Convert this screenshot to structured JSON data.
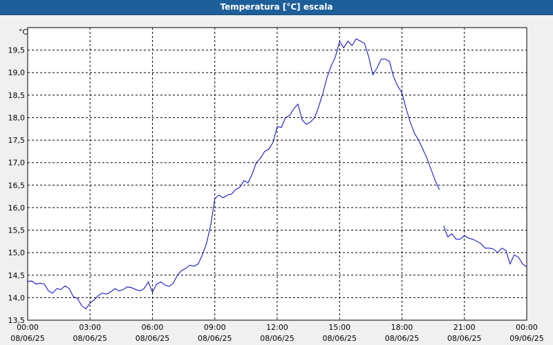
{
  "window": {
    "title": "Temperatura [°C] escala"
  },
  "chart_data": {
    "type": "line",
    "title": "Temperatura [°C] escala",
    "ylabel": "°C",
    "xlabel": "",
    "ylim": [
      13.5,
      20.0
    ],
    "xlim_hours": [
      0,
      24
    ],
    "grid": true,
    "y_ticks": [
      {
        "value": 13.5,
        "label": "13,5"
      },
      {
        "value": 14.0,
        "label": "14,0"
      },
      {
        "value": 14.5,
        "label": "14,5"
      },
      {
        "value": 15.0,
        "label": "15,0"
      },
      {
        "value": 15.5,
        "label": "15,5"
      },
      {
        "value": 16.0,
        "label": "16,0"
      },
      {
        "value": 16.5,
        "label": "16,5"
      },
      {
        "value": 17.0,
        "label": "17,0"
      },
      {
        "value": 17.5,
        "label": "17,5"
      },
      {
        "value": 18.0,
        "label": "18,0"
      },
      {
        "value": 18.5,
        "label": "18,5"
      },
      {
        "value": 19.0,
        "label": "19,0"
      },
      {
        "value": 19.5,
        "label": "19,5"
      }
    ],
    "x_ticks": [
      {
        "hour": 0,
        "time": "00:00",
        "date": "08/06/25"
      },
      {
        "hour": 3,
        "time": "03:00",
        "date": "08/06/25"
      },
      {
        "hour": 6,
        "time": "06:00",
        "date": "08/06/25"
      },
      {
        "hour": 9,
        "time": "09:00",
        "date": "08/06/25"
      },
      {
        "hour": 12,
        "time": "12:00",
        "date": "08/06/25"
      },
      {
        "hour": 15,
        "time": "15:00",
        "date": "08/06/25"
      },
      {
        "hour": 18,
        "time": "18:00",
        "date": "08/06/25"
      },
      {
        "hour": 21,
        "time": "21:00",
        "date": "08/06/25"
      },
      {
        "hour": 24,
        "time": "00:00",
        "date": "09/06/25"
      }
    ],
    "series": [
      {
        "color": "#0000c0",
        "segments": [
          {
            "hours": [
              0.0,
              0.2,
              0.4,
              0.6,
              0.8,
              1.0,
              1.2,
              1.4,
              1.6,
              1.8,
              2.0,
              2.2,
              2.4,
              2.6,
              2.8,
              3.0,
              3.2,
              3.4,
              3.6,
              3.8,
              4.0,
              4.2,
              4.4,
              4.6,
              4.8,
              5.0,
              5.2,
              5.4,
              5.6,
              5.8,
              6.0,
              6.2,
              6.4,
              6.6,
              6.8,
              7.0,
              7.2,
              7.4,
              7.6,
              7.8,
              8.0,
              8.2,
              8.4,
              8.6,
              8.8,
              9.0,
              9.2,
              9.4,
              9.6,
              9.8,
              10.0,
              10.2,
              10.4,
              10.6,
              10.8,
              11.0,
              11.2,
              11.4,
              11.6,
              11.8,
              12.0,
              12.2,
              12.4,
              12.6,
              12.8,
              13.0,
              13.2,
              13.4,
              13.6,
              13.8,
              14.0,
              14.2,
              14.4,
              14.6,
              14.8,
              15.0,
              15.2,
              15.4,
              15.6,
              15.8,
              16.0,
              16.2,
              16.4,
              16.6,
              16.8,
              17.0,
              17.2,
              17.4,
              17.6,
              17.8,
              18.0,
              18.2,
              18.4,
              18.6,
              18.8,
              19.0,
              19.2,
              19.4,
              19.6,
              19.8
            ],
            "values": [
              14.36,
              14.37,
              14.3,
              14.32,
              14.3,
              14.15,
              14.1,
              14.2,
              14.18,
              14.26,
              14.2,
              14.02,
              13.98,
              13.82,
              13.75,
              13.88,
              13.95,
              14.05,
              14.1,
              14.08,
              14.13,
              14.2,
              14.15,
              14.18,
              14.24,
              14.22,
              14.18,
              14.15,
              14.2,
              14.35,
              14.12,
              14.3,
              14.35,
              14.28,
              14.25,
              14.32,
              14.5,
              14.6,
              14.65,
              14.72,
              14.7,
              14.75,
              14.95,
              15.2,
              15.6,
              16.2,
              16.28,
              16.22,
              16.28,
              16.3,
              16.4,
              16.45,
              16.6,
              16.55,
              16.75,
              17.0,
              17.1,
              17.25,
              17.3,
              17.45,
              17.8,
              17.78,
              18.0,
              18.05,
              18.2,
              18.3,
              17.95,
              17.85,
              17.9,
              18.0,
              18.25,
              18.55,
              18.9,
              19.15,
              19.35,
              19.7,
              19.55,
              19.7,
              19.6,
              19.75,
              19.7,
              19.65,
              19.35,
              18.95,
              19.1,
              19.3,
              19.3,
              19.25,
              18.9,
              18.7,
              18.55,
              18.2,
              17.9,
              17.65,
              17.5,
              17.3,
              17.1,
              16.85,
              16.6,
              16.4
            ]
          },
          {
            "hours": [
              20.0,
              20.2,
              20.4,
              20.6,
              20.8,
              21.0,
              21.2,
              21.4,
              21.6,
              21.8,
              22.0,
              22.2,
              22.4,
              22.6,
              22.8,
              23.0,
              23.2,
              23.4,
              23.6,
              23.8,
              24.0
            ],
            "values": [
              15.6,
              15.35,
              15.42,
              15.3,
              15.3,
              15.38,
              15.32,
              15.3,
              15.25,
              15.2,
              15.1,
              15.1,
              15.08,
              15.0,
              15.1,
              15.05,
              14.75,
              14.95,
              14.9,
              14.75,
              14.68
            ]
          }
        ],
        "gap_fill": {
          "hours": [
            19.8,
            19.9,
            20.0,
            20.2,
            20.4,
            20.6,
            20.8,
            21.0,
            21.2,
            21.4,
            21.6,
            21.8,
            22.0,
            22.2,
            22.4,
            22.6,
            22.8,
            23.0,
            23.2,
            23.4,
            23.6,
            23.8,
            24.0
          ],
          "values": [
            16.4,
            16.2,
            15.6,
            15.35,
            15.42,
            15.3,
            15.3,
            15.38,
            15.32,
            15.3,
            15.25,
            15.2,
            15.1,
            15.1,
            15.08,
            15.0,
            15.1,
            15.05,
            14.75,
            14.95,
            14.9,
            14.75,
            14.68
          ]
        }
      }
    ]
  }
}
